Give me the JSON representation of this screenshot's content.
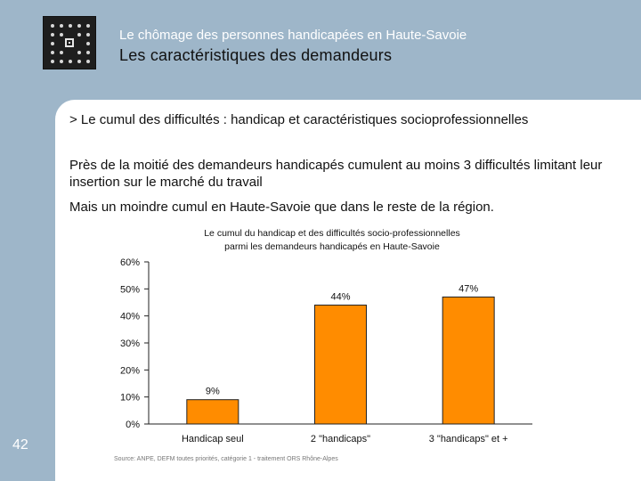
{
  "header": {
    "subtitle": "Le chômage des personnes handicapées en Haute-Savoie",
    "title": "Les caractéristiques des demandeurs"
  },
  "subheading": "> Le cumul des difficultés : handicap et caractéristiques socioprofessionnelles",
  "paragraphs": [
    "Près de la moitié des demandeurs handicapés cumulent au moins 3 difficultés limitant leur insertion sur le marché du travail",
    "Mais un moindre cumul en Haute-Savoie que dans le reste de la région."
  ],
  "page_number": "42",
  "source_note": "Source: ANPE, DEFM toutes priorités, catégorie 1 - traitement ORS Rhône-Alpes",
  "chart_data": {
    "type": "bar",
    "title": "Le cumul du handicap et des difficultés socio-professionnelles",
    "subtitle": "parmi les demandeurs handicapés en Haute-Savoie",
    "categories": [
      "Handicap seul",
      "2 \"handicaps\"",
      "3 \"handicaps\" et +"
    ],
    "values": [
      9,
      44,
      47
    ],
    "value_labels": [
      "9%",
      "44%",
      "47%"
    ],
    "ylim": [
      0,
      60
    ],
    "yticks": [
      "0%",
      "10%",
      "20%",
      "30%",
      "40%",
      "50%",
      "60%"
    ],
    "ytick_values": [
      0,
      10,
      20,
      30,
      40,
      50,
      60
    ],
    "grid": false,
    "bar_color": "#ff8c00",
    "bar_stroke": "#222222"
  }
}
